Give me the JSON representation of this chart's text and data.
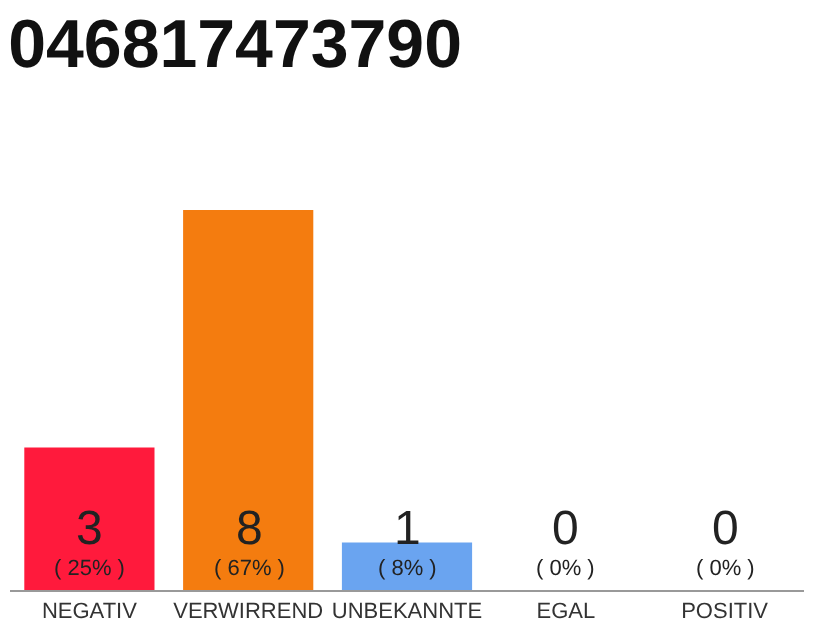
{
  "chart_data": {
    "type": "bar",
    "title": "046817473790",
    "categories": [
      "NEGATIV",
      "VERWIRREND",
      "UNBEKANNTE",
      "EGAL",
      "POSITIV"
    ],
    "values": [
      3,
      8,
      1,
      0,
      0
    ],
    "colors": [
      "#ff1a3c",
      "#f47c0f",
      "#6aa4f0",
      "#e0e0e0",
      "#e0e0e0"
    ],
    "value_labels": [
      "3\n( 25% )",
      "8\n( 67% )",
      "1\n( 8% )",
      "0\n( 0% )",
      "0\n( 0% )"
    ],
    "legend": false
  }
}
